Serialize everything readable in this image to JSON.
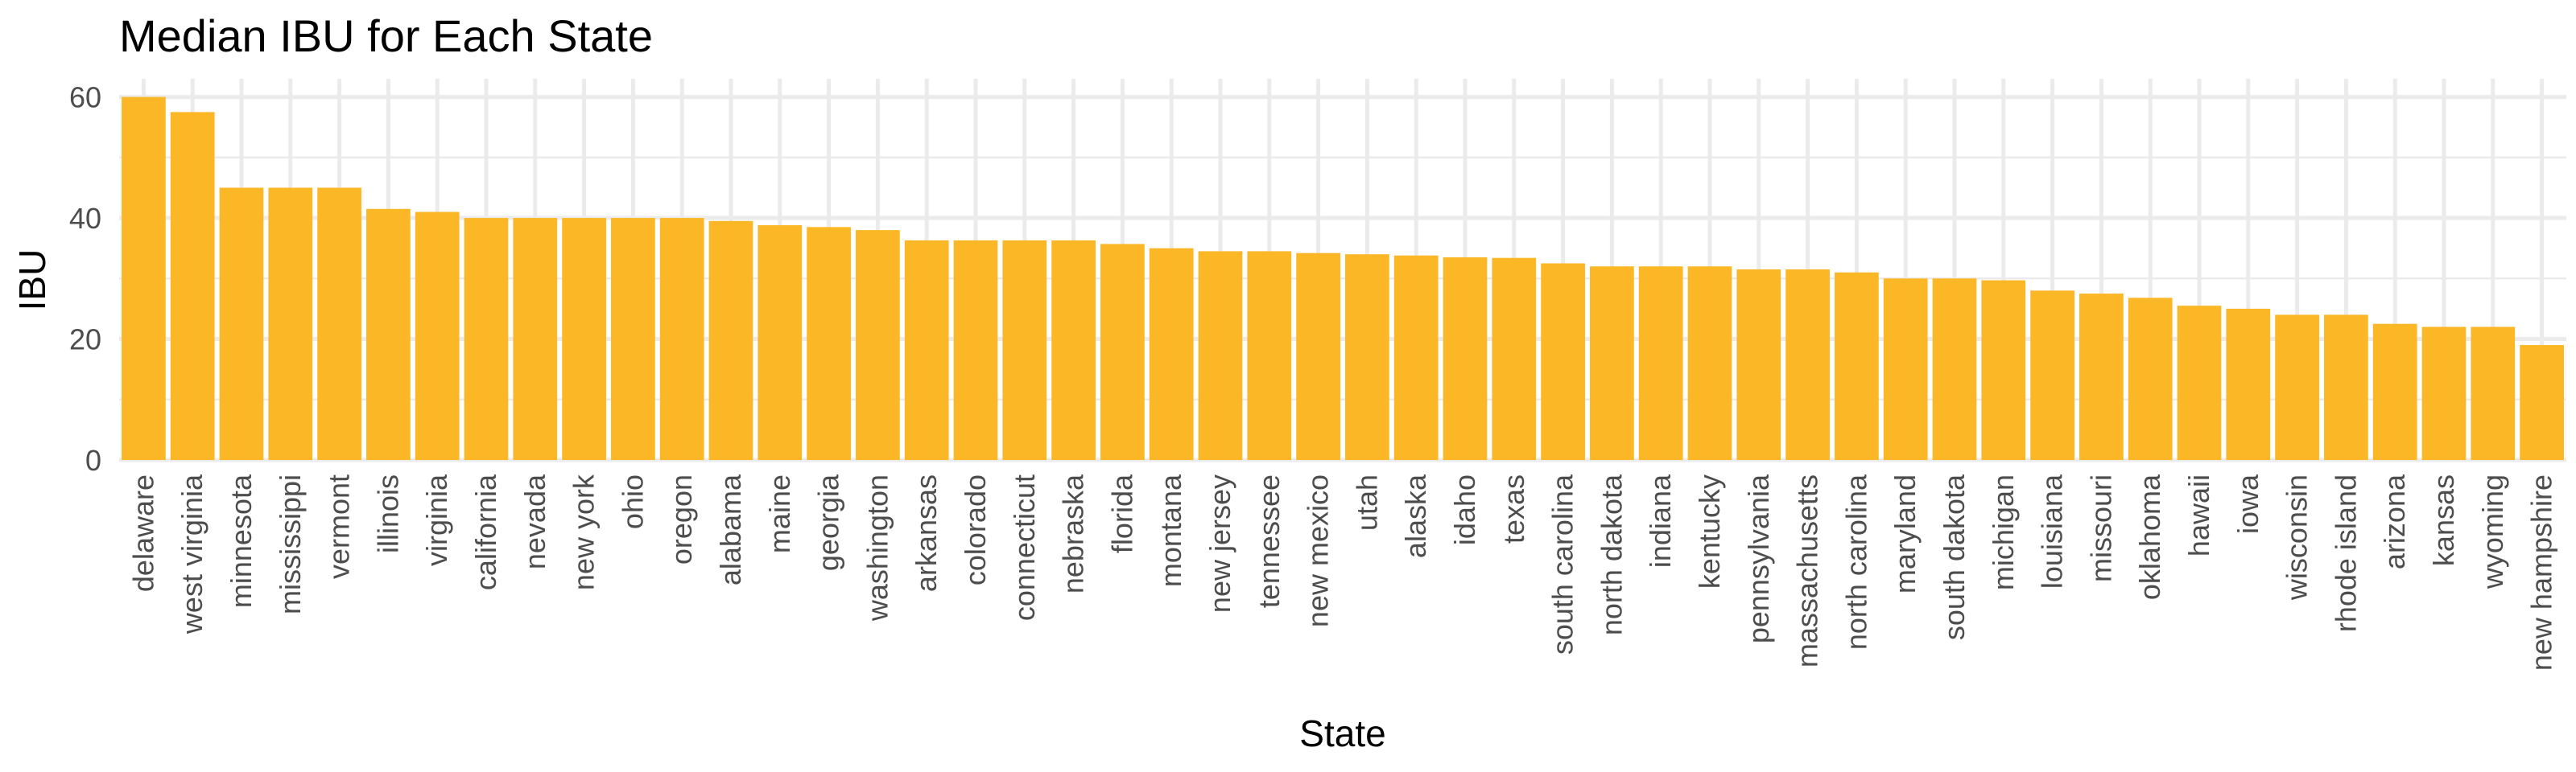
{
  "chart_data": {
    "type": "bar",
    "title": "Median IBU for Each State",
    "xlabel": "State",
    "ylabel": "IBU",
    "ylim": [
      0,
      63
    ],
    "yticks": [
      0,
      20,
      40,
      60
    ],
    "grid": true,
    "legend": "none",
    "bar_color": "#FBB725",
    "grid_color": "#EBEBEB",
    "background_color": "#FFFFFF",
    "categories": [
      "delaware",
      "west virginia",
      "minnesota",
      "mississippi",
      "vermont",
      "illinois",
      "virginia",
      "california",
      "nevada",
      "new york",
      "ohio",
      "oregon",
      "alabama",
      "maine",
      "georgia",
      "washington",
      "arkansas",
      "colorado",
      "connecticut",
      "nebraska",
      "florida",
      "montana",
      "new jersey",
      "tennessee",
      "new mexico",
      "utah",
      "alaska",
      "idaho",
      "texas",
      "south carolina",
      "north dakota",
      "indiana",
      "kentucky",
      "pennsylvania",
      "massachusetts",
      "north carolina",
      "maryland",
      "south dakota",
      "michigan",
      "louisiana",
      "missouri",
      "oklahoma",
      "hawaii",
      "iowa",
      "wisconsin",
      "rhode island",
      "arizona",
      "kansas",
      "wyoming",
      "new hampshire"
    ],
    "values": [
      60,
      57.5,
      45,
      45,
      45,
      41.5,
      41,
      40,
      40,
      40,
      40,
      40,
      39.5,
      38.8,
      38.5,
      38,
      36.3,
      36.3,
      36.3,
      36.3,
      35.7,
      35,
      34.5,
      34.5,
      34.2,
      34,
      33.8,
      33.5,
      33.4,
      32.5,
      32,
      32,
      32,
      31.5,
      31.5,
      31,
      30,
      30,
      29.7,
      28,
      27.5,
      26.8,
      25.5,
      25,
      24,
      24,
      22.5,
      22,
      22,
      19
    ]
  }
}
